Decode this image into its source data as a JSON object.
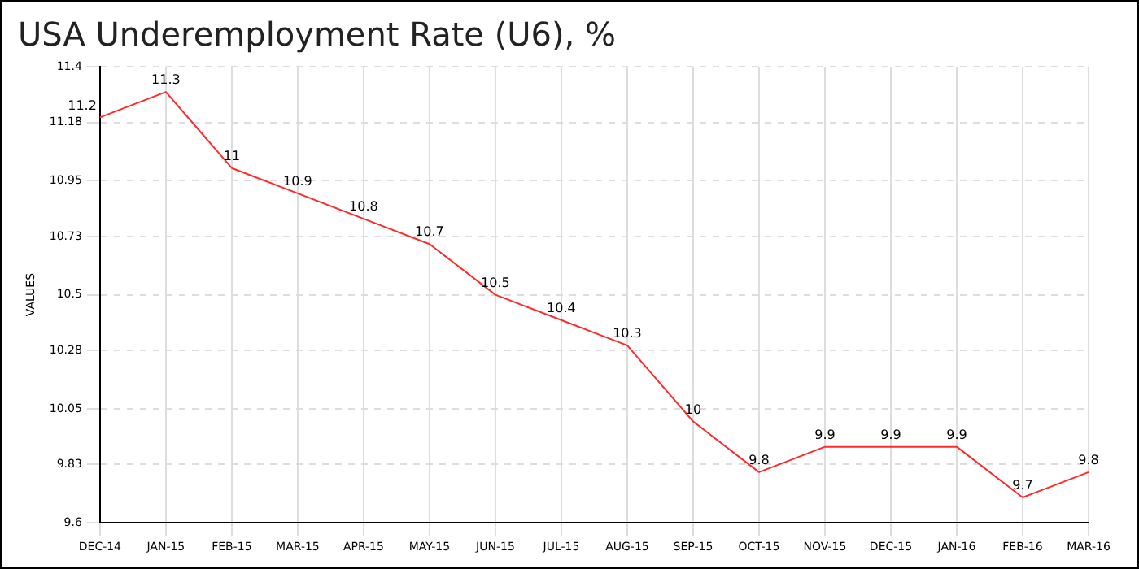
{
  "chart_data": {
    "type": "line",
    "title": "USA Underemployment Rate (U6), %",
    "ylabel": "VALUES",
    "categories": [
      "DEC-14",
      "JAN-15",
      "FEB-15",
      "MAR-15",
      "APR-15",
      "MAY-15",
      "JUN-15",
      "JUL-15",
      "AUG-15",
      "SEP-15",
      "OCT-15",
      "NOV-15",
      "DEC-15",
      "JAN-16",
      "FEB-16",
      "MAR-16"
    ],
    "series": [
      {
        "color": "#ff2a2a",
        "values": [
          11.2,
          11.3,
          11,
          10.9,
          10.8,
          10.7,
          10.5,
          10.4,
          10.3,
          10,
          9.8,
          9.9,
          9.9,
          9.9,
          9.7,
          9.8
        ]
      }
    ],
    "ylim": [
      9.6,
      11.4
    ],
    "yticks": [
      9.6,
      9.83,
      10.05,
      10.28,
      10.5,
      10.73,
      10.95,
      11.18,
      11.4
    ],
    "grid": true,
    "legend": false,
    "data_labels": true,
    "marker": "none",
    "line_style": "solid"
  }
}
